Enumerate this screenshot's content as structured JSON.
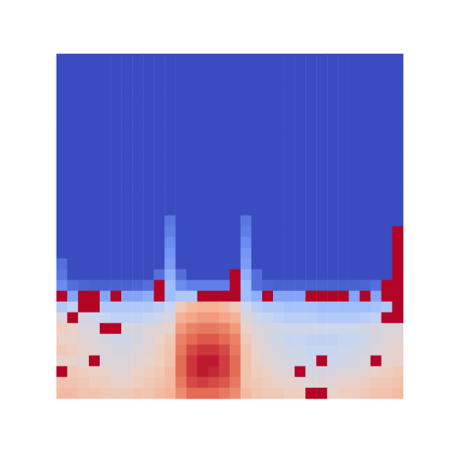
{
  "chart_data": {
    "type": "heatmap",
    "tick_labels": false,
    "color_range": [
      0,
      1
    ],
    "cells": [
      [
        0,
        0,
        0,
        0,
        0,
        0,
        0,
        0,
        0,
        0,
        0,
        0,
        0,
        0,
        0,
        0,
        0,
        0,
        0,
        0,
        0,
        0,
        0,
        0,
        0,
        0,
        0,
        0,
        0,
        0,
        0,
        0
      ],
      [
        0,
        0,
        0,
        0,
        0,
        0,
        0,
        0,
        0,
        0,
        0,
        0,
        0,
        0,
        0,
        0,
        0,
        0,
        0,
        0,
        0,
        0,
        0,
        0,
        0,
        0,
        0,
        0,
        0,
        0,
        0,
        0
      ],
      [
        0,
        0,
        0,
        0,
        0,
        0,
        0,
        0,
        0,
        0,
        0,
        0,
        0,
        0,
        0,
        0,
        0,
        0,
        0,
        0,
        0,
        0,
        0,
        0,
        0,
        0,
        0,
        0,
        0,
        0,
        0,
        0
      ],
      [
        0,
        0,
        0,
        0,
        0,
        0,
        0,
        0,
        0,
        0,
        0,
        0,
        0,
        0,
        0,
        0,
        0,
        0,
        0,
        0,
        0,
        0,
        0,
        0,
        0,
        0,
        0,
        0,
        0,
        0,
        0,
        0
      ],
      [
        0,
        0,
        0,
        0,
        0,
        0,
        0,
        0,
        0,
        0,
        0,
        0,
        0,
        0,
        0,
        0,
        0,
        0,
        0,
        0,
        0,
        0,
        0,
        0,
        0,
        0,
        0,
        0,
        0,
        0,
        0,
        0
      ],
      [
        0,
        0,
        0,
        0,
        0,
        0,
        0,
        0,
        0,
        0,
        0,
        0,
        0,
        0,
        0,
        0,
        0,
        0,
        0,
        0,
        0,
        0,
        0,
        0,
        0,
        0,
        0,
        0,
        0,
        0,
        0,
        0
      ],
      [
        0,
        0,
        0,
        0,
        0,
        0,
        0,
        0,
        0,
        0,
        0,
        0,
        0,
        0,
        0,
        0,
        0,
        0,
        0,
        0,
        0,
        0,
        0,
        0,
        0,
        0,
        0,
        0,
        0,
        0,
        0,
        0
      ],
      [
        0,
        0,
        0,
        0,
        0,
        0,
        0,
        0,
        0,
        0,
        0,
        0,
        0,
        0,
        0,
        0,
        0,
        0,
        0,
        0,
        0,
        0,
        0,
        0,
        0,
        0,
        0,
        0,
        0,
        0,
        0,
        0
      ],
      [
        0,
        0,
        0,
        0,
        0,
        0,
        0,
        0,
        0,
        0,
        0,
        0,
        0,
        0,
        0,
        0,
        0,
        0,
        0,
        0,
        0,
        0,
        0,
        0,
        0,
        0,
        0,
        0,
        0,
        0,
        0,
        0
      ],
      [
        0,
        0,
        0,
        0,
        0,
        0,
        0,
        0,
        0,
        0,
        0,
        0,
        0,
        0,
        0,
        0,
        0,
        0,
        0,
        0,
        0,
        0,
        0,
        0,
        0,
        0,
        0,
        0,
        0,
        0,
        0,
        0
      ],
      [
        0,
        0,
        0,
        0,
        0,
        0,
        0,
        0,
        0,
        0,
        0,
        0,
        0,
        0,
        0,
        0,
        0,
        0,
        0,
        0,
        0,
        0,
        0,
        0,
        0,
        0,
        0,
        0,
        0,
        0,
        0,
        0
      ],
      [
        0,
        0,
        0,
        0,
        0,
        0,
        0,
        0,
        0,
        0,
        0,
        0,
        0,
        0,
        0,
        0,
        0,
        0,
        0,
        0,
        0,
        0,
        0,
        0,
        0,
        0,
        0,
        0,
        0,
        0,
        0,
        0
      ],
      [
        0,
        0,
        0,
        0,
        0,
        0,
        0,
        0,
        0,
        0,
        0,
        0,
        0,
        0,
        0,
        0,
        0,
        0,
        0,
        0,
        0,
        0,
        0,
        0,
        0,
        0,
        0,
        0,
        0,
        0,
        0,
        0
      ],
      [
        0,
        0,
        0,
        0,
        0,
        0,
        0,
        0,
        0,
        0,
        0,
        0,
        0,
        0,
        0,
        0,
        0,
        0,
        0,
        0,
        0,
        0,
        0,
        0,
        0,
        0,
        0,
        0,
        0,
        0,
        0,
        0
      ],
      [
        0,
        0,
        0,
        0,
        0,
        0,
        0,
        0,
        0,
        0,
        0,
        0,
        0,
        0,
        0,
        0,
        0,
        0,
        0,
        0,
        0,
        0,
        0,
        0,
        0,
        0,
        0,
        0,
        0,
        0,
        0,
        0
      ],
      [
        0,
        0,
        0,
        0,
        0,
        0,
        0,
        0,
        0,
        0,
        0.1,
        0,
        0,
        0,
        0,
        0,
        0,
        0.1,
        0,
        0,
        0,
        0,
        0,
        0,
        0,
        0,
        0,
        0,
        0,
        0,
        0,
        0
      ],
      [
        0,
        0,
        0,
        0,
        0,
        0,
        0,
        0,
        0,
        0,
        0.12,
        0,
        0,
        0,
        0,
        0,
        0,
        0.12,
        0,
        0,
        0,
        0,
        0,
        0,
        0,
        0,
        0,
        0,
        0,
        0,
        0,
        1.2
      ],
      [
        0,
        0,
        0,
        0,
        0,
        0,
        0,
        0,
        0,
        0,
        0.15,
        0,
        0,
        0,
        0,
        0,
        0,
        0.15,
        0,
        0,
        0,
        0,
        0,
        0,
        0,
        0,
        0,
        0,
        0,
        0,
        0,
        1.2
      ],
      [
        0,
        0,
        0,
        0,
        0,
        0,
        0,
        0,
        0,
        0,
        0.18,
        0,
        0,
        0,
        0,
        0,
        0,
        0.18,
        0,
        0,
        0,
        0,
        0,
        0,
        0,
        0,
        0,
        0,
        0,
        0,
        0,
        1.2
      ],
      [
        0.08,
        0,
        0,
        0,
        0,
        0,
        0,
        0,
        0,
        0,
        0.2,
        0,
        0,
        0,
        0,
        0,
        0,
        0.2,
        0,
        0,
        0,
        0,
        0,
        0,
        0,
        0,
        0,
        0,
        0,
        0,
        0,
        1.2
      ],
      [
        0.1,
        0,
        0,
        0,
        0,
        0,
        0,
        0,
        0,
        0.08,
        0.25,
        0.08,
        0,
        0,
        0,
        0,
        1.2,
        0.25,
        0.08,
        0,
        0,
        0,
        0,
        0,
        0,
        0,
        0,
        0,
        0,
        0,
        0,
        1.2
      ],
      [
        0.15,
        0.08,
        0.06,
        0.05,
        0.05,
        0.05,
        0.05,
        0.06,
        0.08,
        1.2,
        0.3,
        0.15,
        0.12,
        0.12,
        0.12,
        0.12,
        1.2,
        0.3,
        0.08,
        0.06,
        0.05,
        0.05,
        0.05,
        0.05,
        0.05,
        0.05,
        0.05,
        0.05,
        0.06,
        0.08,
        1.2,
        1.2
      ],
      [
        1.2,
        0.22,
        1.2,
        1.2,
        0.22,
        1.2,
        0.22,
        0.22,
        0.25,
        1.2,
        0.3,
        0.35,
        0.35,
        1.2,
        1.2,
        1.2,
        1.2,
        0.3,
        0.25,
        1.2,
        0.22,
        0.22,
        0.22,
        1.2,
        1.2,
        1.2,
        1.2,
        0.22,
        1.2,
        0.22,
        1.2,
        1.2
      ],
      [
        0.35,
        0.4,
        1.2,
        1.2,
        0.35,
        0.35,
        0.35,
        0.35,
        0.35,
        0.38,
        0.42,
        0.6,
        0.65,
        0.68,
        0.68,
        0.65,
        0.6,
        0.45,
        0.38,
        0.35,
        0.35,
        0.32,
        0.32,
        0.32,
        0.3,
        0.3,
        0.3,
        0.3,
        0.3,
        0.32,
        0.35,
        1.2
      ],
      [
        0.5,
        1.2,
        0.48,
        0.45,
        0.42,
        0.4,
        0.4,
        0.4,
        0.42,
        0.45,
        0.5,
        0.68,
        0.72,
        0.75,
        0.75,
        0.72,
        0.68,
        0.5,
        0.45,
        0.42,
        0.4,
        0.38,
        0.38,
        0.38,
        0.36,
        0.36,
        0.36,
        0.36,
        0.38,
        0.4,
        1.2,
        1.2
      ],
      [
        0.58,
        0.55,
        0.5,
        0.5,
        1.2,
        1.2,
        0.48,
        0.48,
        0.5,
        0.52,
        0.55,
        0.75,
        0.8,
        0.82,
        0.82,
        0.8,
        0.75,
        0.55,
        0.5,
        0.48,
        0.46,
        0.45,
        0.45,
        0.45,
        0.44,
        0.44,
        0.44,
        0.45,
        0.46,
        0.48,
        0.5,
        0.5
      ],
      [
        0.55,
        0.55,
        0.52,
        0.5,
        0.48,
        0.45,
        0.45,
        0.48,
        0.5,
        0.55,
        0.6,
        0.8,
        0.85,
        0.88,
        0.88,
        0.85,
        0.8,
        0.6,
        0.52,
        0.48,
        0.45,
        0.42,
        0.42,
        0.4,
        0.4,
        0.4,
        0.42,
        0.42,
        0.45,
        0.48,
        0.5,
        0.52
      ],
      [
        0.6,
        0.58,
        0.55,
        0.52,
        0.5,
        0.48,
        0.48,
        0.5,
        0.52,
        0.58,
        0.62,
        0.82,
        0.9,
        0.93,
        0.93,
        0.9,
        0.82,
        0.62,
        0.55,
        0.5,
        0.48,
        0.45,
        0.45,
        0.42,
        0.42,
        0.42,
        0.45,
        0.45,
        0.48,
        0.5,
        0.52,
        0.55
      ],
      [
        0.55,
        0.55,
        0.52,
        1.2,
        0.5,
        0.5,
        0.5,
        0.52,
        0.55,
        0.58,
        0.62,
        0.85,
        0.93,
        0.97,
        0.97,
        0.92,
        0.85,
        0.62,
        0.55,
        0.52,
        0.5,
        0.48,
        0.45,
        0.45,
        1.2,
        0.45,
        0.45,
        0.48,
        0.5,
        1.2,
        0.52,
        0.55
      ],
      [
        1.2,
        0.6,
        0.58,
        0.55,
        0.55,
        0.52,
        0.52,
        0.55,
        0.58,
        0.6,
        0.65,
        0.85,
        0.93,
        0.97,
        0.95,
        0.92,
        0.85,
        0.62,
        0.58,
        0.55,
        0.52,
        0.5,
        1.2,
        0.48,
        0.48,
        0.48,
        0.5,
        0.5,
        0.52,
        0.55,
        0.58,
        0.6
      ],
      [
        0.62,
        0.62,
        0.6,
        0.58,
        0.58,
        0.55,
        0.55,
        0.58,
        0.6,
        0.62,
        0.65,
        0.82,
        0.9,
        0.92,
        0.9,
        0.88,
        0.82,
        0.62,
        0.6,
        0.58,
        0.55,
        0.55,
        0.52,
        0.52,
        0.52,
        0.52,
        0.55,
        0.55,
        0.58,
        0.6,
        0.6,
        0.62
      ],
      [
        0.65,
        0.65,
        0.62,
        0.62,
        0.6,
        0.6,
        0.6,
        0.62,
        0.62,
        0.65,
        0.68,
        0.78,
        0.85,
        0.85,
        0.85,
        0.82,
        0.78,
        0.65,
        0.62,
        0.6,
        0.6,
        0.58,
        0.58,
        1.2,
        1.2,
        0.55,
        0.58,
        0.58,
        0.6,
        0.62,
        0.62,
        0.65
      ]
    ]
  }
}
